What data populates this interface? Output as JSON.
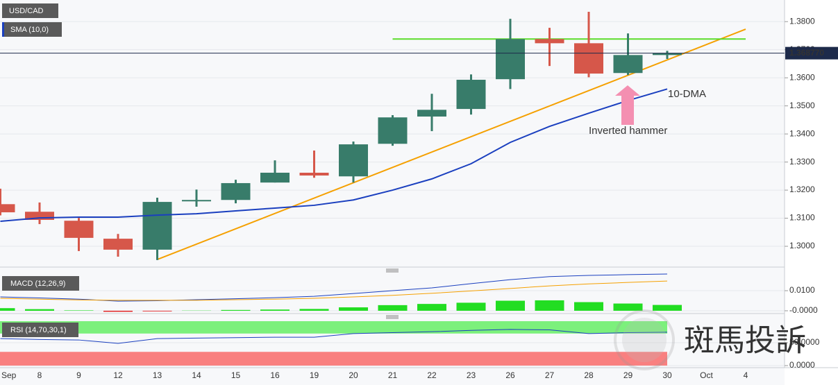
{
  "chart_data": [
    {
      "type": "candlestick",
      "title": "USD/CAD",
      "categories": [
        "Sep",
        "8",
        "9",
        "12",
        "13",
        "14",
        "15",
        "16",
        "19",
        "20",
        "21",
        "22",
        "23",
        "26",
        "27",
        "28",
        "29",
        "30",
        "Oct",
        "4"
      ],
      "open": [
        1.315,
        1.3123,
        1.3091,
        1.3027,
        1.2988,
        1.316,
        1.3165,
        1.3227,
        1.3262,
        1.3249,
        1.3365,
        1.3462,
        1.3489,
        1.3595,
        1.3738,
        1.3723,
        1.3617,
        1.3681,
        null,
        null
      ],
      "high": [
        1.3205,
        1.3156,
        1.3101,
        1.3044,
        1.3173,
        1.3202,
        1.3237,
        1.3306,
        1.3341,
        1.3373,
        1.3467,
        1.3543,
        1.3612,
        1.381,
        1.3778,
        1.3835,
        1.3758,
        1.3696,
        null,
        null
      ],
      "low": [
        1.311,
        1.3079,
        1.2983,
        1.2963,
        1.2951,
        1.3141,
        1.3153,
        1.3227,
        1.3244,
        1.3227,
        1.3358,
        1.341,
        1.3469,
        1.356,
        1.3642,
        1.3602,
        1.361,
        1.3667,
        null,
        null
      ],
      "close": [
        1.3121,
        1.3094,
        1.303,
        1.2988,
        1.3158,
        1.3165,
        1.3225,
        1.3262,
        1.3252,
        1.3363,
        1.3459,
        1.3486,
        1.3593,
        1.3738,
        1.3723,
        1.3615,
        1.3681,
        1.3688,
        null,
        null
      ],
      "up_color": "#387c6a",
      "down_color": "#d6574a",
      "series": [
        {
          "name": "SMA (10,0)",
          "color": "#1a3fbf",
          "values": [
            1.3089,
            1.3101,
            1.3104,
            1.3104,
            1.3111,
            1.3116,
            1.3126,
            1.3136,
            1.3146,
            1.3165,
            1.32,
            1.324,
            1.3294,
            1.337,
            1.3427,
            1.3474,
            1.3519,
            1.356,
            null,
            null
          ]
        }
      ],
      "lines": [
        {
          "color": "#f5a000",
          "categories": [
            "13",
            "4"
          ],
          "values": [
            1.2953,
            1.3773
          ]
        },
        {
          "color": "#5bdc2a",
          "categories": [
            "21",
            "4"
          ],
          "values": [
            1.3738,
            1.3738
          ]
        }
      ],
      "last_price": {
        "value": 1.36877,
        "label": "1.368770"
      },
      "annotations": [
        {
          "text": "10-DMA",
          "color": "#7e57c2"
        },
        {
          "text": "Inverted hammer",
          "color": "#f48fb1"
        }
      ],
      "ylim": [
        1.2926,
        1.3877
      ],
      "yticks": [
        {
          "value": 1.3,
          "label": "1.3000"
        },
        {
          "value": 1.31,
          "label": "1.3100"
        },
        {
          "value": 1.32,
          "label": "1.3200"
        },
        {
          "value": 1.33,
          "label": "1.3300"
        },
        {
          "value": 1.34,
          "label": "1.3400"
        },
        {
          "value": 1.35,
          "label": "1.3500"
        },
        {
          "value": 1.36,
          "label": "1.3600"
        },
        {
          "value": 1.37,
          "label": "1.3700"
        },
        {
          "value": 1.38,
          "label": "1.3800"
        }
      ],
      "grid": true
    },
    {
      "type": "macd",
      "title": "MACD (12,26,9)",
      "series": [
        {
          "color": "#1a3fbf",
          "values": [
            0.0069,
            0.0064,
            0.0058,
            0.0048,
            0.005,
            0.0055,
            0.006,
            0.0065,
            0.0072,
            0.0086,
            0.01,
            0.0114,
            0.0135,
            0.0155,
            0.017,
            0.0176,
            0.018,
            0.0183,
            null,
            null
          ]
        },
        {
          "color": "#f5a000",
          "values": [
            0.0062,
            0.0058,
            0.0054,
            0.0052,
            0.0052,
            0.0052,
            0.0055,
            0.0058,
            0.0062,
            0.0069,
            0.0077,
            0.0087,
            0.0099,
            0.0111,
            0.0124,
            0.0134,
            0.0141,
            0.0148,
            null,
            null
          ]
        }
      ],
      "histogram": [
        0.0013,
        0.0008,
        0.0002,
        -0.0005,
        -0.0003,
        0.0001,
        0.0004,
        0.0006,
        0.0009,
        0.0017,
        0.0028,
        0.0034,
        0.004,
        0.005,
        0.0052,
        0.0043,
        0.0036,
        0.0029,
        null,
        null
      ],
      "up_color": "#22dd22",
      "down_color": "#e02020",
      "ylim": [
        -0.0007,
        0.019
      ],
      "yticks": [
        {
          "value": 0,
          "label": "-0.0000"
        },
        {
          "value": 0.01,
          "label": "0.0100"
        }
      ],
      "grid": true
    },
    {
      "type": "rsi",
      "title": "RSI (14,70,30,1)",
      "values": [
        59,
        57,
        56,
        48.5,
        59,
        60,
        61,
        62,
        62,
        70,
        72,
        74,
        77,
        79,
        78,
        70,
        72,
        73,
        null,
        null
      ],
      "color": "#1a3fbf",
      "bands": [
        {
          "from": 70,
          "to": 100,
          "color": "#7cf07c"
        },
        {
          "from": 0,
          "to": 30,
          "color": "#f98080"
        }
      ],
      "ylim": [
        -4.5,
        97
      ],
      "yticks": [
        {
          "value": 0,
          "label": "0.0000"
        },
        {
          "value": 50,
          "label": "50.0000"
        }
      ],
      "grid": true
    }
  ],
  "watermark": "斑馬投訴"
}
